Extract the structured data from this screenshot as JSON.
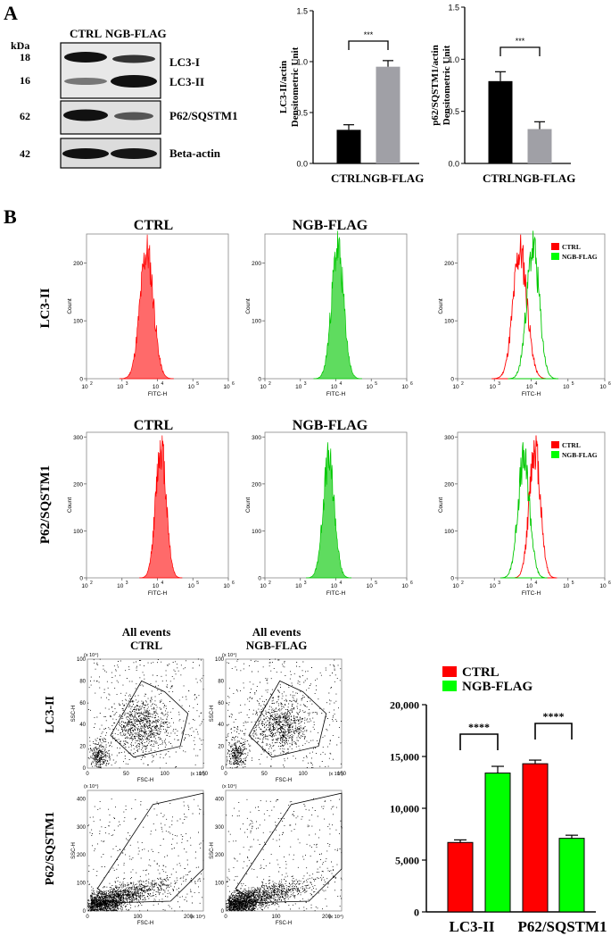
{
  "panels": {
    "a": "A",
    "b": "B"
  },
  "western_blot": {
    "lane_labels": [
      "CTRL",
      "NGB-FLAG"
    ],
    "kda_label": "kDa",
    "kda": [
      "18",
      "16",
      "62",
      "42"
    ],
    "proteins": [
      "LC3-I",
      "LC3-II",
      "P62/SQSTM1",
      "Beta-actin"
    ]
  },
  "row_labels": [
    "LC3-II",
    "P62/SQSTM1",
    "LC3-II",
    "P62/SQSTM1"
  ],
  "hist_titles": [
    "CTRL",
    "NGB-FLAG",
    "CTRL",
    "NGB-FLAG"
  ],
  "scatter_titles": {
    "line1": "All events",
    "ctrl": "CTRL",
    "ngb": "NGB-FLAG"
  },
  "colors": {
    "ctrl_bar": "#000000",
    "ngb_bar": "#a0a0a6",
    "ctrl_hist": "#ff0000",
    "ngb_hist": "#00c800",
    "ctrl_fill": "#ff6a6a",
    "ngb_fill": "#5fdc5f",
    "legend_ctrl": "#ff0000",
    "legend_ngb": "#00ff00"
  },
  "chart_data": [
    {
      "id": "densitometry-lc3",
      "type": "bar",
      "categories": [
        "CTRL",
        "NGB-FLAG"
      ],
      "values": [
        0.33,
        0.95
      ],
      "errors": [
        0.05,
        0.06
      ],
      "significance": "***",
      "ylabel_lines": [
        "LC3-II/actin",
        "Densitometric Unit"
      ],
      "ylim": [
        0,
        1.5
      ],
      "yticks": [
        "0.0",
        "0.5",
        "1.0",
        "1.5"
      ]
    },
    {
      "id": "densitometry-p62",
      "type": "bar",
      "categories": [
        "CTRL",
        "NGB-FLAG"
      ],
      "values": [
        0.79,
        0.33
      ],
      "errors": [
        0.09,
        0.07
      ],
      "significance": "***",
      "ylabel_lines": [
        "p62/SQSTM1/actin",
        "Densitometric Unit"
      ],
      "ylim": [
        0,
        1.5
      ],
      "yticks": [
        "0.0",
        "0.5",
        "1.0",
        "1.5"
      ]
    },
    {
      "id": "flow-histograms",
      "type": "area",
      "xlabel": "FITC-H",
      "ylabel": "Count",
      "xticks": [
        "10",
        "10",
        "10",
        "10",
        "10"
      ],
      "xtick_exponents": [
        "2",
        "3",
        "4",
        "5",
        "6"
      ],
      "xlim_log10": [
        2,
        6
      ],
      "legend": [
        "CTRL",
        "NGB-FLAG"
      ],
      "rows": [
        {
          "marker": "LC3-II",
          "yticks": [
            "0",
            "100",
            "200"
          ],
          "ymax": 250,
          "ctrl": {
            "peak_log10": 3.7,
            "sd": 0.19,
            "height": 220
          },
          "ngb": {
            "peak_log10": 4.05,
            "sd": 0.17,
            "height": 225
          }
        },
        {
          "marker": "P62/SQSTM1",
          "yticks": [
            "0",
            "100",
            "200",
            "300"
          ],
          "ymax": 310,
          "ctrl": {
            "peak_log10": 4.1,
            "sd": 0.15,
            "height": 280
          },
          "ngb": {
            "peak_log10": 3.8,
            "sd": 0.16,
            "height": 250
          }
        }
      ]
    },
    {
      "id": "flow-scatter",
      "type": "scatter",
      "xlabel": "FSC-H",
      "ylabel": "SSC-H",
      "multiplier": "(x 10⁴)",
      "rows": [
        {
          "marker": "LC3-II",
          "xticks": [
            "0",
            "50",
            "100",
            "150"
          ],
          "yticks": [
            "0",
            "20",
            "40",
            "60",
            "80",
            "100"
          ],
          "xmax": 150,
          "ymax": 100,
          "gate": [
            [
              30,
              30
            ],
            [
              70,
              80
            ],
            [
              100,
              70
            ],
            [
              130,
              50
            ],
            [
              120,
              20
            ],
            [
              60,
              10
            ]
          ]
        },
        {
          "marker": "P62/SQSTM1",
          "xticks": [
            "0",
            "100",
            "200"
          ],
          "yticks": [
            "0",
            "100",
            "200",
            "300",
            "400"
          ],
          "xmax": 230,
          "ymax": 430,
          "gate": [
            [
              20,
              80
            ],
            [
              130,
              380
            ],
            [
              230,
              420
            ],
            [
              230,
              150
            ],
            [
              165,
              35
            ],
            [
              60,
              30
            ]
          ]
        }
      ]
    },
    {
      "id": "mfi-bar",
      "type": "bar",
      "categories": [
        "LC3-II",
        "P62/SQSTM1"
      ],
      "series": [
        {
          "name": "CTRL",
          "values": [
            6700,
            14300
          ],
          "errors": [
            250,
            350
          ]
        },
        {
          "name": "NGB-FLAG",
          "values": [
            13400,
            7100
          ],
          "errors": [
            650,
            300
          ]
        }
      ],
      "significance": [
        "****",
        "****"
      ],
      "ylim": [
        0,
        20000
      ],
      "yticks": [
        "0",
        "5,000",
        "10,000",
        "15,000",
        "20,000"
      ]
    }
  ]
}
